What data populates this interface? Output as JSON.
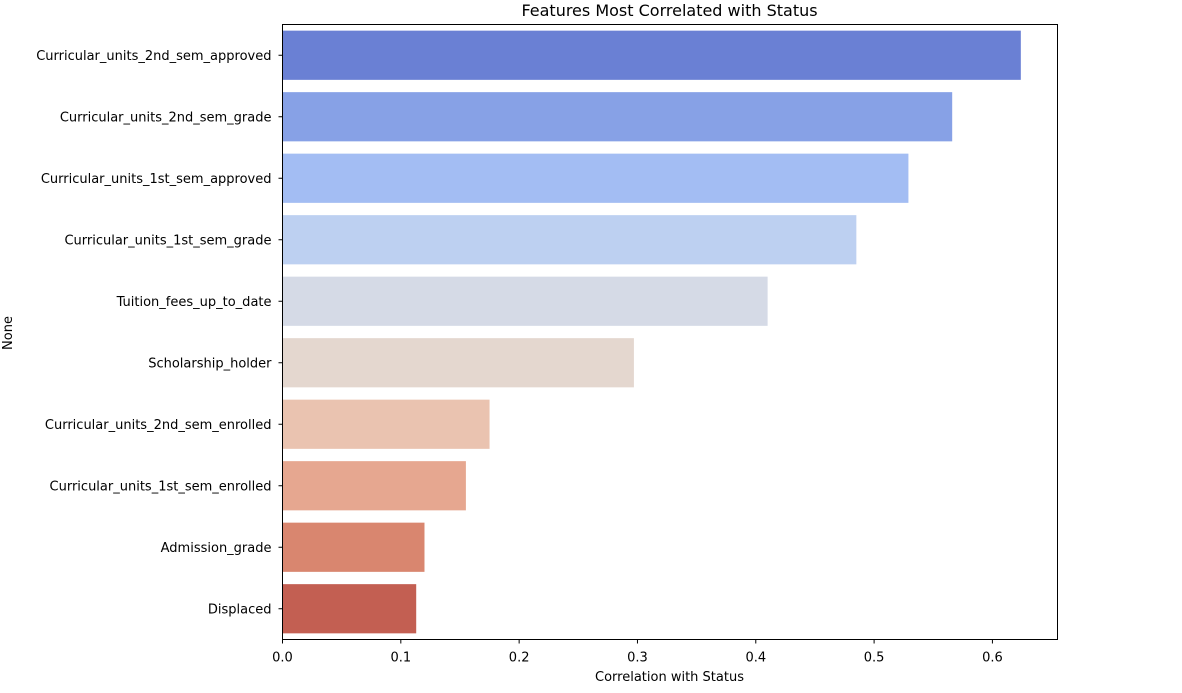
{
  "chart_data": {
    "type": "bar",
    "orientation": "horizontal",
    "title": "Features Most Correlated with Status",
    "xlabel": "Correlation with Status",
    "ylabel": "None",
    "xlim": [
      0,
      0.655
    ],
    "xticks": [
      "0.0",
      "0.1",
      "0.2",
      "0.3",
      "0.4",
      "0.5",
      "0.6"
    ],
    "grid": false,
    "categories": [
      "Curricular_units_2nd_sem_approved",
      "Curricular_units_2nd_sem_grade",
      "Curricular_units_1st_sem_approved",
      "Curricular_units_1st_sem_grade",
      "Tuition_fees_up_to_date",
      "Scholarship_holder",
      "Curricular_units_2nd_sem_enrolled",
      "Curricular_units_1st_sem_enrolled",
      "Admission_grade",
      "Displaced"
    ],
    "values": [
      0.624,
      0.566,
      0.529,
      0.485,
      0.41,
      0.297,
      0.175,
      0.155,
      0.12,
      0.113
    ],
    "colors": [
      "#6a80d4",
      "#87a1e6",
      "#a3bdf3",
      "#bdd0f1",
      "#d5dae6",
      "#e4d7cf",
      "#eac3b0",
      "#e6a790",
      "#d9866f",
      "#c35f52"
    ]
  }
}
